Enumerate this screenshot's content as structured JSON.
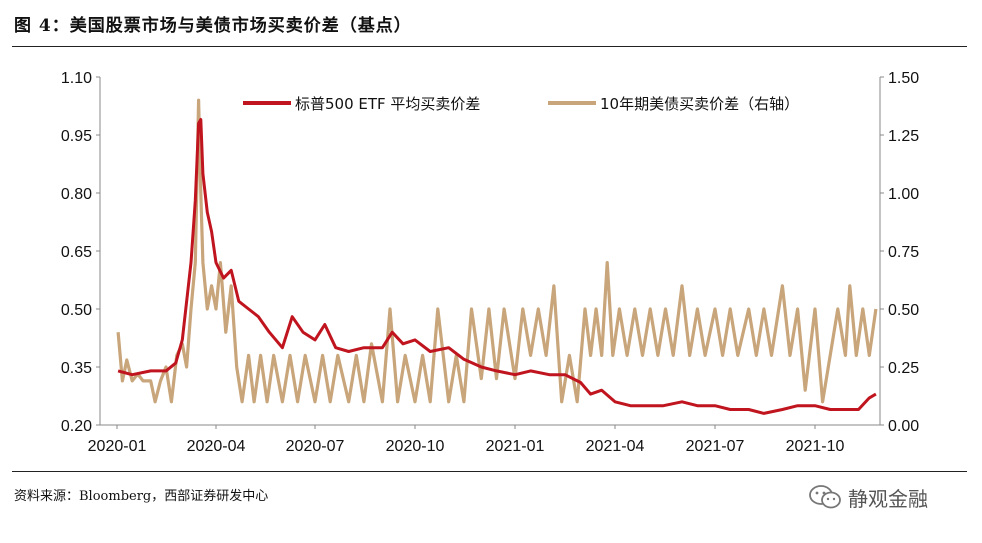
{
  "figure": {
    "title": "图 4：美国股票市场与美债市场买卖价差（基点）",
    "source": "资料来源：Bloomberg，西部证券研发中心",
    "watermark": "静观金融",
    "watermark_icon": "wechat-icon"
  },
  "chart_data": {
    "type": "line",
    "title": "",
    "xlabel": "",
    "ylabel": "",
    "x_ticks": [
      "2020-01",
      "2020-04",
      "2020-07",
      "2020-10",
      "2021-01",
      "2021-04",
      "2021-07",
      "2021-10"
    ],
    "x_range": [
      "2020-01-01",
      "2021-12-01"
    ],
    "left_axis": {
      "ticks": [
        "0.20",
        "0.35",
        "0.50",
        "0.65",
        "0.80",
        "0.95",
        "1.10"
      ],
      "ylim": [
        0.2,
        1.1
      ]
    },
    "right_axis": {
      "ticks": [
        "0.00",
        "0.25",
        "0.50",
        "0.75",
        "1.00",
        "1.25",
        "1.50"
      ],
      "ylim": [
        0.0,
        1.5
      ]
    },
    "legend": "top-center",
    "grid": false,
    "series": [
      {
        "name": "标普500 ETF 平均买卖价差",
        "axis": "left",
        "color": "#c0141e",
        "points": [
          [
            "2020-01-02",
            0.34
          ],
          [
            "2020-01-15",
            0.33
          ],
          [
            "2020-02-01",
            0.34
          ],
          [
            "2020-02-15",
            0.34
          ],
          [
            "2020-02-24",
            0.36
          ],
          [
            "2020-03-01",
            0.42
          ],
          [
            "2020-03-09",
            0.62
          ],
          [
            "2020-03-13",
            0.78
          ],
          [
            "2020-03-16",
            0.98
          ],
          [
            "2020-03-18",
            0.99
          ],
          [
            "2020-03-20",
            0.85
          ],
          [
            "2020-03-24",
            0.75
          ],
          [
            "2020-03-28",
            0.7
          ],
          [
            "2020-04-01",
            0.62
          ],
          [
            "2020-04-08",
            0.58
          ],
          [
            "2020-04-15",
            0.6
          ],
          [
            "2020-04-22",
            0.52
          ],
          [
            "2020-05-01",
            0.5
          ],
          [
            "2020-05-10",
            0.48
          ],
          [
            "2020-05-20",
            0.44
          ],
          [
            "2020-06-01",
            0.4
          ],
          [
            "2020-06-10",
            0.48
          ],
          [
            "2020-06-20",
            0.44
          ],
          [
            "2020-07-01",
            0.42
          ],
          [
            "2020-07-10",
            0.46
          ],
          [
            "2020-07-20",
            0.4
          ],
          [
            "2020-08-01",
            0.39
          ],
          [
            "2020-08-15",
            0.4
          ],
          [
            "2020-09-01",
            0.4
          ],
          [
            "2020-09-10",
            0.44
          ],
          [
            "2020-09-20",
            0.41
          ],
          [
            "2020-10-01",
            0.42
          ],
          [
            "2020-10-15",
            0.39
          ],
          [
            "2020-11-01",
            0.4
          ],
          [
            "2020-11-15",
            0.37
          ],
          [
            "2020-12-01",
            0.35
          ],
          [
            "2020-12-15",
            0.34
          ],
          [
            "2021-01-01",
            0.33
          ],
          [
            "2021-01-15",
            0.34
          ],
          [
            "2021-02-01",
            0.33
          ],
          [
            "2021-02-15",
            0.33
          ],
          [
            "2021-03-01",
            0.31
          ],
          [
            "2021-03-10",
            0.28
          ],
          [
            "2021-03-20",
            0.29
          ],
          [
            "2021-04-01",
            0.26
          ],
          [
            "2021-04-15",
            0.25
          ],
          [
            "2021-05-01",
            0.25
          ],
          [
            "2021-05-15",
            0.25
          ],
          [
            "2021-06-01",
            0.26
          ],
          [
            "2021-06-15",
            0.25
          ],
          [
            "2021-07-01",
            0.25
          ],
          [
            "2021-07-15",
            0.24
          ],
          [
            "2021-08-01",
            0.24
          ],
          [
            "2021-08-15",
            0.23
          ],
          [
            "2021-09-01",
            0.24
          ],
          [
            "2021-09-15",
            0.25
          ],
          [
            "2021-10-01",
            0.25
          ],
          [
            "2021-10-15",
            0.24
          ],
          [
            "2021-11-01",
            0.24
          ],
          [
            "2021-11-10",
            0.24
          ],
          [
            "2021-11-20",
            0.27
          ],
          [
            "2021-11-26",
            0.28
          ]
        ]
      },
      {
        "name": "10年期美债买卖价差（右轴）",
        "axis": "right",
        "color": "#c8a57a",
        "points": [
          [
            "2020-01-02",
            0.4
          ],
          [
            "2020-01-06",
            0.19
          ],
          [
            "2020-01-10",
            0.28
          ],
          [
            "2020-01-15",
            0.19
          ],
          [
            "2020-01-20",
            0.22
          ],
          [
            "2020-01-25",
            0.19
          ],
          [
            "2020-02-01",
            0.19
          ],
          [
            "2020-02-05",
            0.1
          ],
          [
            "2020-02-10",
            0.19
          ],
          [
            "2020-02-15",
            0.25
          ],
          [
            "2020-02-20",
            0.1
          ],
          [
            "2020-02-25",
            0.3
          ],
          [
            "2020-03-01",
            0.35
          ],
          [
            "2020-03-05",
            0.25
          ],
          [
            "2020-03-09",
            0.5
          ],
          [
            "2020-03-13",
            0.7
          ],
          [
            "2020-03-16",
            1.4
          ],
          [
            "2020-03-18",
            1.0
          ],
          [
            "2020-03-20",
            0.7
          ],
          [
            "2020-03-24",
            0.5
          ],
          [
            "2020-03-28",
            0.6
          ],
          [
            "2020-04-01",
            0.5
          ],
          [
            "2020-04-05",
            0.7
          ],
          [
            "2020-04-10",
            0.4
          ],
          [
            "2020-04-15",
            0.6
          ],
          [
            "2020-04-20",
            0.25
          ],
          [
            "2020-04-25",
            0.1
          ],
          [
            "2020-05-01",
            0.3
          ],
          [
            "2020-05-06",
            0.1
          ],
          [
            "2020-05-12",
            0.3
          ],
          [
            "2020-05-18",
            0.1
          ],
          [
            "2020-05-24",
            0.3
          ],
          [
            "2020-06-01",
            0.1
          ],
          [
            "2020-06-08",
            0.3
          ],
          [
            "2020-06-15",
            0.1
          ],
          [
            "2020-06-22",
            0.3
          ],
          [
            "2020-07-01",
            0.1
          ],
          [
            "2020-07-08",
            0.3
          ],
          [
            "2020-07-15",
            0.1
          ],
          [
            "2020-07-22",
            0.3
          ],
          [
            "2020-08-01",
            0.1
          ],
          [
            "2020-08-08",
            0.3
          ],
          [
            "2020-08-15",
            0.1
          ],
          [
            "2020-08-22",
            0.35
          ],
          [
            "2020-09-01",
            0.1
          ],
          [
            "2020-09-08",
            0.5
          ],
          [
            "2020-09-15",
            0.1
          ],
          [
            "2020-09-22",
            0.3
          ],
          [
            "2020-10-01",
            0.1
          ],
          [
            "2020-10-08",
            0.3
          ],
          [
            "2020-10-15",
            0.1
          ],
          [
            "2020-10-22",
            0.5
          ],
          [
            "2020-11-01",
            0.1
          ],
          [
            "2020-11-08",
            0.3
          ],
          [
            "2020-11-15",
            0.1
          ],
          [
            "2020-11-22",
            0.5
          ],
          [
            "2020-12-01",
            0.2
          ],
          [
            "2020-12-08",
            0.5
          ],
          [
            "2020-12-15",
            0.2
          ],
          [
            "2020-12-22",
            0.5
          ],
          [
            "2021-01-01",
            0.2
          ],
          [
            "2021-01-08",
            0.5
          ],
          [
            "2021-01-15",
            0.3
          ],
          [
            "2021-01-22",
            0.5
          ],
          [
            "2021-01-29",
            0.3
          ],
          [
            "2021-02-05",
            0.6
          ],
          [
            "2021-02-12",
            0.1
          ],
          [
            "2021-02-19",
            0.3
          ],
          [
            "2021-02-26",
            0.1
          ],
          [
            "2021-03-05",
            0.5
          ],
          [
            "2021-03-10",
            0.3
          ],
          [
            "2021-03-15",
            0.5
          ],
          [
            "2021-03-20",
            0.3
          ],
          [
            "2021-03-25",
            0.7
          ],
          [
            "2021-03-30",
            0.3
          ],
          [
            "2021-04-05",
            0.5
          ],
          [
            "2021-04-12",
            0.3
          ],
          [
            "2021-04-19",
            0.5
          ],
          [
            "2021-04-26",
            0.3
          ],
          [
            "2021-05-03",
            0.5
          ],
          [
            "2021-05-10",
            0.3
          ],
          [
            "2021-05-17",
            0.5
          ],
          [
            "2021-05-24",
            0.3
          ],
          [
            "2021-06-01",
            0.6
          ],
          [
            "2021-06-08",
            0.3
          ],
          [
            "2021-06-15",
            0.5
          ],
          [
            "2021-06-22",
            0.3
          ],
          [
            "2021-07-01",
            0.5
          ],
          [
            "2021-07-08",
            0.3
          ],
          [
            "2021-07-15",
            0.5
          ],
          [
            "2021-07-22",
            0.3
          ],
          [
            "2021-08-01",
            0.5
          ],
          [
            "2021-08-08",
            0.3
          ],
          [
            "2021-08-15",
            0.5
          ],
          [
            "2021-08-22",
            0.3
          ],
          [
            "2021-09-01",
            0.6
          ],
          [
            "2021-09-08",
            0.3
          ],
          [
            "2021-09-15",
            0.5
          ],
          [
            "2021-09-22",
            0.15
          ],
          [
            "2021-10-01",
            0.5
          ],
          [
            "2021-10-08",
            0.1
          ],
          [
            "2021-10-15",
            0.3
          ],
          [
            "2021-10-22",
            0.5
          ],
          [
            "2021-10-29",
            0.3
          ],
          [
            "2021-11-02",
            0.6
          ],
          [
            "2021-11-08",
            0.3
          ],
          [
            "2021-11-14",
            0.5
          ],
          [
            "2021-11-20",
            0.3
          ],
          [
            "2021-11-26",
            0.5
          ]
        ]
      }
    ]
  }
}
